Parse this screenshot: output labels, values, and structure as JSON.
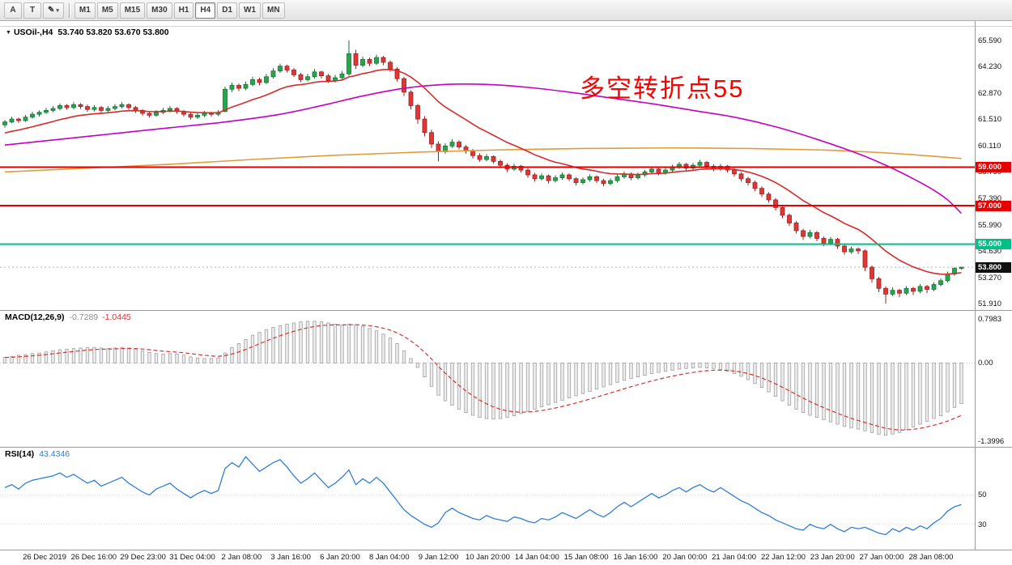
{
  "toolbar": {
    "left_tools": [
      {
        "name": "cursor-tool-button",
        "label": "A"
      },
      {
        "name": "text-tool-button",
        "label": "T"
      },
      {
        "name": "draw-tools-button",
        "label": "✎",
        "caret": "▾"
      }
    ],
    "timeframes": [
      "M1",
      "M5",
      "M15",
      "M30",
      "H1",
      "H4",
      "D1",
      "W1",
      "MN"
    ],
    "active_timeframe": "H4"
  },
  "symbol_header": {
    "expand_icon": "▼",
    "symbol": "USOil-,H4",
    "ohlc_text": "53.740 53.820 53.670 53.800"
  },
  "annotation": {
    "text": "多空转折点55",
    "color": "#ff0000"
  },
  "macd_header": {
    "name": "MACD(12,26,9)",
    "main_value": "-0.7289",
    "signal_value": "-1.0445"
  },
  "rsi_header": {
    "name": "RSI(14)",
    "value": "43.4346"
  },
  "price_axis": {
    "labels": [
      "65.590",
      "64.230",
      "62.870",
      "61.510",
      "60.110",
      "58.750",
      "57.390",
      "55.990",
      "54.630",
      "53.270",
      "51.910"
    ],
    "values": [
      65.59,
      64.23,
      62.87,
      61.51,
      60.11,
      58.75,
      57.39,
      55.99,
      54.63,
      53.27,
      51.91
    ]
  },
  "level_badges": [
    {
      "label": "59.000",
      "value": 59.0,
      "color": "#e60000"
    },
    {
      "label": "57.000",
      "value": 57.0,
      "color": "#e60000"
    },
    {
      "label": "55.000",
      "value": 55.0,
      "color": "#00bf87"
    }
  ],
  "current_price_badge": {
    "label": "53.800",
    "value": 53.8,
    "color": "#111111"
  },
  "macd_axis": [
    {
      "label": "0.7983",
      "value": 0.7983
    },
    {
      "label": "0.00",
      "value": 0
    },
    {
      "label": "-1.3996",
      "value": -1.3996
    }
  ],
  "rsi_axis": [
    {
      "label": "50",
      "value": 50
    },
    {
      "label": "30",
      "value": 30
    }
  ],
  "time_axis": [
    "26 Dec 2019",
    "26 Dec 16:00",
    "29 Dec 23:00",
    "31 Dec 04:00",
    "2 Jan 08:00",
    "3 Jan 16:00",
    "6 Jan 20:00",
    "8 Jan 04:00",
    "9 Jan 12:00",
    "10 Jan 20:00",
    "14 Jan 04:00",
    "15 Jan 08:00",
    "16 Jan 16:00",
    "20 Jan 00:00",
    "21 Jan 04:00",
    "22 Jan 12:00",
    "23 Jan 20:00",
    "27 Jan 00:00",
    "28 Jan 08:00"
  ],
  "colors": {
    "bull": "#27a64d",
    "bull_border": "#187237",
    "bear": "#df3636",
    "bear_border": "#9e2121",
    "ma_fast": "#d62b2b",
    "ma_mid": "#c400c4",
    "ma_slow": "#e09c3c",
    "macd_hist_fill": "#ededed",
    "macd_hist_border": "#9e9e9e",
    "macd_signal": "#d83434",
    "rsi_line": "#2f7ed8",
    "current_price_line": "#b5b5b5",
    "separator": "#9a9a9a"
  },
  "chart_data": {
    "type": "candlestick+indicators",
    "symbol": "USOil-",
    "timeframe": "H4",
    "value_range": [
      51.7,
      66.3
    ],
    "macd_range": [
      -1.45,
      0.88
    ],
    "rsi_range": [
      15,
      80
    ],
    "ohlc": [
      [
        61.2,
        61.45,
        61.05,
        61.35
      ],
      [
        61.35,
        61.62,
        61.28,
        61.5
      ],
      [
        61.5,
        61.58,
        61.3,
        61.42
      ],
      [
        61.42,
        61.72,
        61.35,
        61.6
      ],
      [
        61.6,
        61.88,
        61.52,
        61.75
      ],
      [
        61.75,
        61.95,
        61.63,
        61.85
      ],
      [
        61.85,
        62.08,
        61.75,
        61.95
      ],
      [
        61.95,
        62.18,
        61.85,
        62.05
      ],
      [
        62.05,
        62.32,
        61.95,
        62.2
      ],
      [
        62.2,
        62.28,
        61.98,
        62.1
      ],
      [
        62.1,
        62.38,
        62.0,
        62.25
      ],
      [
        62.25,
        62.33,
        62.02,
        62.15
      ],
      [
        62.15,
        62.25,
        61.88,
        62.0
      ],
      [
        62.0,
        62.22,
        61.9,
        62.1
      ],
      [
        62.1,
        62.18,
        61.82,
        61.95
      ],
      [
        61.95,
        62.17,
        61.85,
        62.05
      ],
      [
        62.05,
        62.28,
        61.95,
        62.15
      ],
      [
        62.15,
        62.38,
        62.05,
        62.25
      ],
      [
        62.25,
        62.32,
        61.98,
        62.1
      ],
      [
        62.1,
        62.18,
        61.82,
        61.95
      ],
      [
        61.95,
        62.02,
        61.68,
        61.8
      ],
      [
        61.8,
        61.9,
        61.58,
        61.7
      ],
      [
        61.7,
        61.97,
        61.62,
        61.85
      ],
      [
        61.85,
        62.08,
        61.75,
        61.95
      ],
      [
        61.95,
        62.18,
        61.85,
        62.05
      ],
      [
        62.05,
        62.12,
        61.78,
        61.9
      ],
      [
        61.9,
        61.98,
        61.63,
        61.75
      ],
      [
        61.75,
        61.83,
        61.48,
        61.6
      ],
      [
        61.6,
        61.82,
        61.5,
        61.7
      ],
      [
        61.7,
        61.92,
        61.6,
        61.8
      ],
      [
        61.8,
        61.88,
        61.62,
        61.75
      ],
      [
        61.75,
        61.97,
        61.65,
        61.85
      ],
      [
        61.9,
        63.18,
        61.85,
        63.05
      ],
      [
        63.05,
        63.4,
        62.9,
        63.25
      ],
      [
        63.25,
        63.35,
        62.95,
        63.1
      ],
      [
        63.1,
        63.45,
        63.0,
        63.3
      ],
      [
        63.3,
        63.7,
        63.2,
        63.55
      ],
      [
        63.55,
        63.65,
        63.25,
        63.4
      ],
      [
        63.4,
        63.85,
        63.3,
        63.7
      ],
      [
        63.7,
        64.15,
        63.6,
        64.0
      ],
      [
        64.0,
        64.38,
        63.9,
        64.25
      ],
      [
        64.25,
        64.33,
        63.92,
        64.05
      ],
      [
        64.05,
        64.15,
        63.68,
        63.8
      ],
      [
        63.8,
        63.9,
        63.42,
        63.55
      ],
      [
        63.55,
        63.85,
        63.45,
        63.7
      ],
      [
        63.7,
        64.1,
        63.6,
        63.95
      ],
      [
        63.95,
        64.02,
        63.62,
        63.75
      ],
      [
        63.75,
        63.85,
        63.38,
        63.5
      ],
      [
        63.5,
        63.8,
        63.4,
        63.65
      ],
      [
        63.65,
        64.0,
        63.55,
        63.85
      ],
      [
        63.85,
        65.59,
        63.75,
        64.9
      ],
      [
        64.9,
        65.1,
        64.1,
        64.3
      ],
      [
        64.3,
        64.75,
        64.2,
        64.6
      ],
      [
        64.6,
        64.7,
        64.25,
        64.4
      ],
      [
        64.4,
        64.85,
        64.3,
        64.7
      ],
      [
        64.7,
        64.78,
        64.3,
        64.45
      ],
      [
        64.45,
        64.55,
        63.95,
        64.1
      ],
      [
        64.1,
        64.2,
        63.45,
        63.6
      ],
      [
        63.6,
        63.7,
        62.7,
        62.9
      ],
      [
        62.9,
        63.0,
        62.0,
        62.2
      ],
      [
        62.2,
        62.3,
        61.25,
        61.5
      ],
      [
        61.5,
        61.65,
        60.6,
        60.8
      ],
      [
        60.8,
        60.95,
        60.0,
        60.2
      ],
      [
        60.2,
        60.35,
        59.3,
        59.8
      ],
      [
        59.8,
        60.25,
        59.7,
        60.1
      ],
      [
        60.1,
        60.45,
        60.0,
        60.3
      ],
      [
        60.3,
        60.4,
        59.92,
        60.05
      ],
      [
        60.05,
        60.15,
        59.7,
        59.85
      ],
      [
        59.85,
        59.95,
        59.45,
        59.6
      ],
      [
        59.6,
        59.72,
        59.28,
        59.4
      ],
      [
        59.4,
        59.68,
        59.3,
        59.55
      ],
      [
        59.55,
        59.62,
        59.18,
        59.3
      ],
      [
        59.3,
        59.4,
        58.95,
        59.1
      ],
      [
        59.1,
        59.2,
        58.75,
        58.9
      ],
      [
        58.9,
        59.18,
        58.8,
        59.05
      ],
      [
        59.05,
        59.12,
        58.72,
        58.85
      ],
      [
        58.85,
        58.95,
        58.45,
        58.6
      ],
      [
        58.6,
        58.7,
        58.25,
        58.4
      ],
      [
        58.4,
        58.68,
        58.3,
        58.55
      ],
      [
        58.55,
        58.62,
        58.15,
        58.3
      ],
      [
        58.3,
        58.58,
        58.2,
        58.45
      ],
      [
        58.45,
        58.72,
        58.35,
        58.6
      ],
      [
        58.6,
        58.68,
        58.28,
        58.4
      ],
      [
        58.4,
        58.48,
        58.05,
        58.2
      ],
      [
        58.2,
        58.47,
        58.1,
        58.35
      ],
      [
        58.35,
        58.62,
        58.25,
        58.5
      ],
      [
        58.5,
        58.58,
        58.18,
        58.3
      ],
      [
        58.3,
        58.4,
        58.0,
        58.15
      ],
      [
        58.15,
        58.42,
        58.05,
        58.3
      ],
      [
        58.3,
        58.62,
        58.2,
        58.5
      ],
      [
        58.5,
        58.77,
        58.4,
        58.65
      ],
      [
        58.65,
        58.72,
        58.32,
        58.45
      ],
      [
        58.45,
        58.72,
        58.35,
        58.6
      ],
      [
        58.6,
        58.87,
        58.5,
        58.75
      ],
      [
        58.75,
        59.02,
        58.65,
        58.9
      ],
      [
        58.9,
        58.97,
        58.58,
        58.7
      ],
      [
        58.7,
        58.97,
        58.6,
        58.85
      ],
      [
        58.85,
        59.12,
        58.75,
        59.0
      ],
      [
        59.0,
        59.27,
        58.9,
        59.15
      ],
      [
        59.15,
        59.22,
        58.82,
        58.95
      ],
      [
        58.95,
        59.22,
        58.85,
        59.1
      ],
      [
        59.1,
        59.38,
        59.0,
        59.25
      ],
      [
        59.25,
        59.32,
        58.92,
        59.05
      ],
      [
        59.05,
        59.15,
        58.78,
        58.9
      ],
      [
        58.9,
        59.17,
        58.8,
        59.05
      ],
      [
        59.05,
        59.12,
        58.72,
        58.85
      ],
      [
        58.85,
        58.95,
        58.5,
        58.65
      ],
      [
        58.65,
        58.75,
        58.25,
        58.4
      ],
      [
        58.4,
        58.5,
        58.05,
        58.2
      ],
      [
        58.2,
        58.3,
        57.75,
        57.9
      ],
      [
        57.9,
        58.0,
        57.45,
        57.6
      ],
      [
        57.6,
        57.7,
        57.15,
        57.3
      ],
      [
        57.3,
        57.4,
        56.75,
        56.9
      ],
      [
        56.9,
        57.0,
        56.35,
        56.5
      ],
      [
        56.5,
        56.6,
        55.95,
        56.1
      ],
      [
        56.1,
        56.2,
        55.55,
        55.7
      ],
      [
        55.7,
        55.8,
        55.22,
        55.4
      ],
      [
        55.4,
        55.75,
        55.3,
        55.6
      ],
      [
        55.6,
        55.68,
        55.15,
        55.3
      ],
      [
        55.3,
        55.4,
        54.9,
        55.05
      ],
      [
        55.05,
        55.38,
        54.95,
        55.25
      ],
      [
        55.25,
        55.32,
        54.75,
        54.9
      ],
      [
        54.9,
        55.0,
        54.45,
        54.6
      ],
      [
        54.6,
        54.88,
        54.5,
        54.75
      ],
      [
        54.75,
        54.83,
        54.48,
        54.65
      ],
      [
        54.65,
        54.72,
        53.6,
        53.8
      ],
      [
        53.8,
        53.9,
        53.0,
        53.2
      ],
      [
        53.2,
        53.3,
        52.5,
        52.7
      ],
      [
        52.7,
        52.8,
        51.91,
        52.4
      ],
      [
        52.4,
        52.75,
        52.3,
        52.6
      ],
      [
        52.6,
        52.68,
        52.25,
        52.45
      ],
      [
        52.45,
        52.82,
        52.35,
        52.7
      ],
      [
        52.7,
        52.78,
        52.35,
        52.55
      ],
      [
        52.55,
        52.92,
        52.45,
        52.8
      ],
      [
        52.8,
        52.88,
        52.45,
        52.65
      ],
      [
        52.65,
        53.02,
        52.55,
        52.9
      ],
      [
        52.9,
        53.22,
        52.8,
        53.1
      ],
      [
        53.1,
        53.57,
        53.0,
        53.45
      ],
      [
        53.45,
        53.8,
        53.35,
        53.74
      ],
      [
        53.74,
        53.82,
        53.67,
        53.8
      ]
    ],
    "ma_red": {
      "alpha": 0.12,
      "seed": 60.7
    },
    "ma_magenta_points": [
      [
        0,
        60.15
      ],
      [
        8,
        60.45
      ],
      [
        16,
        60.75
      ],
      [
        24,
        61.05
      ],
      [
        32,
        61.35
      ],
      [
        40,
        61.75
      ],
      [
        46,
        62.2
      ],
      [
        52,
        62.7
      ],
      [
        58,
        63.1
      ],
      [
        64,
        63.3
      ],
      [
        70,
        63.3
      ],
      [
        76,
        63.15
      ],
      [
        82,
        62.9
      ],
      [
        88,
        62.6
      ],
      [
        94,
        62.3
      ],
      [
        100,
        61.95
      ],
      [
        106,
        61.6
      ],
      [
        112,
        61.1
      ],
      [
        118,
        60.45
      ],
      [
        124,
        59.7
      ],
      [
        128,
        59.1
      ],
      [
        132,
        58.4
      ],
      [
        135,
        57.8
      ],
      [
        137,
        57.3
      ],
      [
        139,
        56.6
      ]
    ],
    "ma_orange_points": [
      [
        0,
        58.75
      ],
      [
        12,
        58.95
      ],
      [
        24,
        59.15
      ],
      [
        36,
        59.4
      ],
      [
        48,
        59.62
      ],
      [
        60,
        59.78
      ],
      [
        72,
        59.9
      ],
      [
        84,
        59.97
      ],
      [
        96,
        60.0
      ],
      [
        108,
        59.97
      ],
      [
        118,
        59.9
      ],
      [
        126,
        59.78
      ],
      [
        133,
        59.62
      ],
      [
        139,
        59.45
      ]
    ],
    "macd": [
      0.1,
      0.12,
      0.14,
      0.15,
      0.17,
      0.18,
      0.2,
      0.22,
      0.24,
      0.25,
      0.26,
      0.27,
      0.28,
      0.28,
      0.27,
      0.26,
      0.27,
      0.28,
      0.27,
      0.25,
      0.22,
      0.19,
      0.17,
      0.16,
      0.17,
      0.16,
      0.14,
      0.11,
      0.09,
      0.08,
      0.08,
      0.09,
      0.18,
      0.28,
      0.35,
      0.42,
      0.5,
      0.55,
      0.6,
      0.64,
      0.67,
      0.7,
      0.72,
      0.74,
      0.75,
      0.75,
      0.74,
      0.72,
      0.7,
      0.68,
      0.7,
      0.69,
      0.66,
      0.62,
      0.58,
      0.52,
      0.45,
      0.35,
      0.22,
      0.08,
      -0.08,
      -0.25,
      -0.42,
      -0.58,
      -0.68,
      -0.76,
      -0.83,
      -0.89,
      -0.94,
      -0.98,
      -1.0,
      -1.01,
      -1.0,
      -0.98,
      -0.95,
      -0.91,
      -0.87,
      -0.83,
      -0.79,
      -0.75,
      -0.71,
      -0.67,
      -0.63,
      -0.59,
      -0.55,
      -0.51,
      -0.47,
      -0.43,
      -0.39,
      -0.35,
      -0.31,
      -0.28,
      -0.25,
      -0.22,
      -0.19,
      -0.17,
      -0.15,
      -0.13,
      -0.11,
      -0.1,
      -0.09,
      -0.08,
      -0.09,
      -0.1,
      -0.12,
      -0.15,
      -0.19,
      -0.24,
      -0.3,
      -0.37,
      -0.44,
      -0.52,
      -0.6,
      -0.68,
      -0.76,
      -0.83,
      -0.89,
      -0.94,
      -0.98,
      -1.02,
      -1.06,
      -1.1,
      -1.14,
      -1.17,
      -1.19,
      -1.22,
      -1.25,
      -1.28,
      -1.3,
      -1.28,
      -1.25,
      -1.2,
      -1.15,
      -1.1,
      -1.05,
      -1.0,
      -0.95,
      -0.88,
      -0.8,
      -0.7289
    ],
    "macd_signal_period": 9,
    "rsi": [
      55,
      57,
      54,
      58,
      60,
      61,
      62,
      63,
      65,
      62,
      64,
      61,
      58,
      60,
      56,
      58,
      60,
      62,
      58,
      55,
      52,
      50,
      54,
      56,
      58,
      54,
      51,
      48,
      51,
      53,
      51,
      53,
      68,
      72,
      69,
      76,
      71,
      66,
      69,
      72,
      74,
      69,
      63,
      58,
      61,
      65,
      60,
      55,
      58,
      62,
      67,
      57,
      61,
      58,
      62,
      58,
      52,
      46,
      40,
      36,
      33,
      30,
      28,
      31,
      38,
      41,
      38,
      36,
      34,
      33,
      36,
      34,
      33,
      32,
      35,
      34,
      32,
      31,
      34,
      33,
      35,
      38,
      36,
      34,
      37,
      40,
      37,
      35,
      38,
      42,
      45,
      42,
      45,
      48,
      51,
      48,
      50,
      53,
      55,
      52,
      55,
      57,
      54,
      52,
      55,
      52,
      49,
      46,
      44,
      41,
      38,
      36,
      33,
      31,
      29,
      27,
      26,
      30,
      28,
      27,
      30,
      27,
      25,
      28,
      27,
      28,
      26,
      24,
      23,
      27,
      25,
      28,
      26,
      29,
      27,
      31,
      34,
      39,
      42,
      43.43
    ]
  }
}
